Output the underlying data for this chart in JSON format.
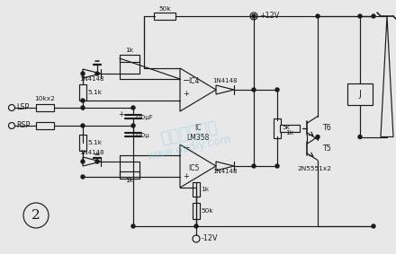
{
  "bg_color": "#e8e8e8",
  "line_color": "#1a1a1a",
  "figsize": [
    4.4,
    2.83
  ],
  "dpi": 100,
  "labels": {
    "plus12v": "+12V",
    "minus12v": "-12V",
    "lsp": "LSP",
    "rsp": "RSP",
    "r_50k_top": "50k",
    "r_1k_top": "1k",
    "r_51k_top": "5.1k",
    "r_51k_bot": "5.1k",
    "r_1k_bot": "1k",
    "r_50k_bot": "50k",
    "r_1k_mid_bot": "1k",
    "r_5k": "5k",
    "r_1k_tr": "1k",
    "r_10kx2": "10kx2",
    "c_220u_top": "220μF",
    "c_220u_bot": "220μ",
    "d1": "1N4148",
    "d2": "1N4148",
    "d3": "1N4148",
    "d4": "1N4148",
    "ic4": "IC4",
    "ic5": "IC5",
    "lm358": "IC\nLM358",
    "t6": "T6",
    "t5": "T5",
    "relay": "J",
    "transistors": "2N5551x2",
    "circle2": "2"
  },
  "watermark1": "电子制作天地",
  "watermark2": "www.dzdiy.com"
}
